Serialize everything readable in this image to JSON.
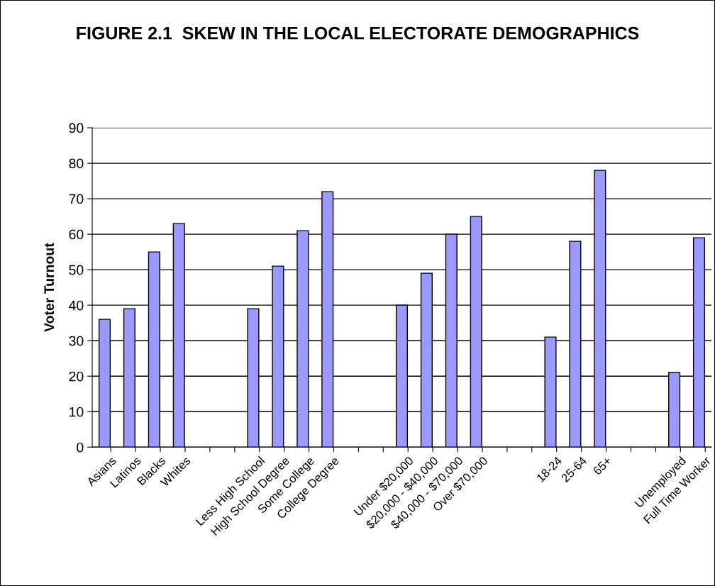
{
  "chart_data": {
    "type": "bar",
    "title": "FIGURE 2.1  SKEW IN THE LOCAL ELECTORATE DEMOGRAPHICS",
    "ylabel": "Voter Turnout",
    "categories": [
      "Asians",
      "Latinos",
      "Blacks",
      "Whites",
      null,
      null,
      "Less High School",
      "High School Degree",
      "Some College",
      "College Degree",
      null,
      null,
      "Under $20,000",
      "$20,000 - $40,000",
      "$40,000 - $70,000",
      "Over $70,000",
      null,
      null,
      "18-24",
      "25-64",
      "65+",
      null,
      null,
      "Unemployed",
      "Full Time Worker"
    ],
    "values": [
      36,
      39,
      55,
      63,
      null,
      null,
      39,
      51,
      61,
      72,
      null,
      null,
      40,
      49,
      60,
      65,
      null,
      null,
      31,
      58,
      78,
      null,
      null,
      21,
      59
    ],
    "color": "#9999ff",
    "ylim": [
      0,
      90
    ],
    "yticks": [
      0,
      10,
      20,
      30,
      40,
      50,
      60,
      70,
      80,
      90
    ],
    "grid": "y",
    "legend": false
  }
}
